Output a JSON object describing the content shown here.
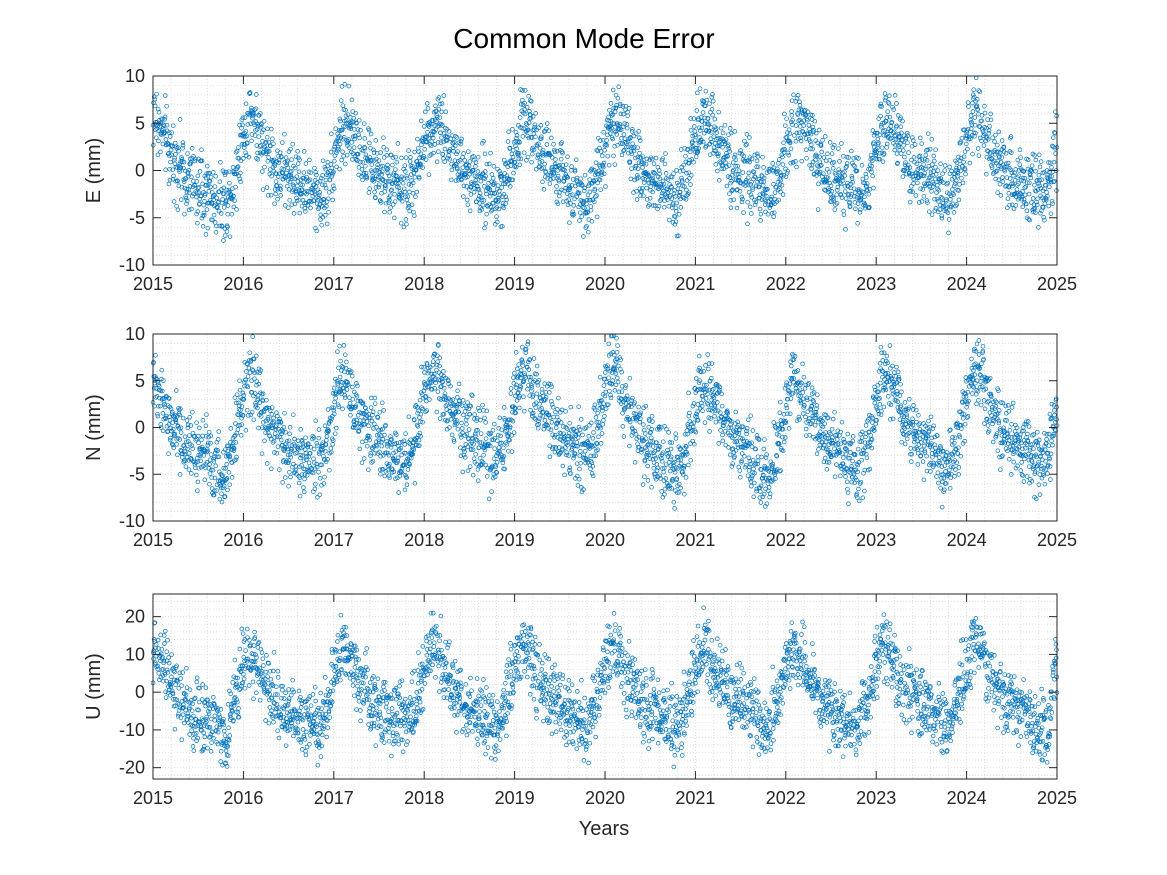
{
  "figure": {
    "title": "Common Mode Error",
    "xlabel": "Years",
    "marker_color": "#0072BD"
  },
  "chart_data": [
    {
      "type": "scatter",
      "ylabel": "E (mm)",
      "xlim": [
        2015,
        2025
      ],
      "ylim": [
        -10,
        10
      ],
      "xticks": [
        2015,
        2016,
        2017,
        2018,
        2019,
        2020,
        2021,
        2022,
        2023,
        2024,
        2025
      ],
      "xtick_labels": [
        "2015",
        "2016",
        "2017",
        "2018",
        "2019",
        "2020",
        "2021",
        "2022",
        "2023",
        "2024",
        "2025"
      ],
      "yticks": [
        -10,
        -5,
        0,
        5,
        10
      ],
      "ytick_labels": [
        "-10",
        "-5",
        "0",
        "5",
        "10"
      ],
      "grid": "minor dotted",
      "x": [
        2015.02,
        2015.1,
        2015.2,
        2015.3,
        2015.4,
        2015.5,
        2015.6,
        2015.7,
        2015.8,
        2015.9,
        2016.0,
        2016.08,
        2016.15,
        2016.25,
        2016.35,
        2016.45,
        2016.55,
        2016.65,
        2016.75,
        2016.85,
        2016.95,
        2017.05,
        2017.12,
        2017.2,
        2017.3,
        2017.4,
        2017.5,
        2017.6,
        2017.7,
        2017.8,
        2017.9,
        2018.02,
        2018.1,
        2018.2,
        2018.3,
        2018.4,
        2018.5,
        2018.6,
        2018.7,
        2018.8,
        2018.9,
        2019.02,
        2019.1,
        2019.2,
        2019.3,
        2019.4,
        2019.5,
        2019.6,
        2019.7,
        2019.8,
        2019.9,
        2020.02,
        2020.1,
        2020.2,
        2020.3,
        2020.4,
        2020.5,
        2020.6,
        2020.7,
        2020.8,
        2020.9,
        2021.02,
        2021.1,
        2021.2,
        2021.3,
        2021.4,
        2021.5,
        2021.6,
        2021.7,
        2021.8,
        2021.9,
        2022.02,
        2022.1,
        2022.2,
        2022.3,
        2022.4,
        2022.5,
        2022.6,
        2022.7,
        2022.8,
        2022.9,
        2023.02,
        2023.1,
        2023.2,
        2023.3,
        2023.4,
        2023.5,
        2023.6,
        2023.7,
        2023.8,
        2023.9,
        2024.02,
        2024.1,
        2024.2,
        2024.3,
        2024.4,
        2024.5,
        2024.6,
        2024.7,
        2024.8,
        2024.9,
        2024.98
      ],
      "y": [
        5.5,
        4.0,
        2.0,
        0.5,
        -1.0,
        -2.0,
        -2.5,
        -3.0,
        -3.5,
        -1.0,
        4.0,
        6.0,
        4.5,
        2.0,
        0.0,
        -0.5,
        -1.0,
        -1.5,
        -2.5,
        -3.0,
        -1.0,
        3.5,
        5.0,
        4.0,
        2.0,
        0.5,
        -0.5,
        -1.0,
        -1.5,
        -2.0,
        -1.0,
        3.5,
        5.0,
        4.5,
        2.5,
        0.5,
        -0.5,
        -1.5,
        -2.0,
        -2.5,
        -1.0,
        3.0,
        5.5,
        4.5,
        2.0,
        0.5,
        -0.5,
        -1.5,
        -2.5,
        -3.0,
        -1.0,
        3.5,
        5.5,
        4.0,
        1.5,
        0.0,
        -1.0,
        -1.5,
        -2.0,
        -2.5,
        -1.0,
        4.0,
        6.0,
        4.5,
        2.0,
        0.5,
        -0.5,
        -1.0,
        -1.5,
        -3.0,
        -2.0,
        3.0,
        5.0,
        4.5,
        2.0,
        0.0,
        -0.5,
        -1.0,
        -1.5,
        -2.0,
        -1.5,
        3.0,
        5.0,
        4.5,
        2.0,
        0.0,
        -0.5,
        -1.0,
        -2.0,
        -2.5,
        -1.0,
        4.5,
        6.0,
        4.5,
        2.0,
        0.5,
        -0.5,
        -1.0,
        -1.5,
        -2.0,
        -2.5,
        2.0
      ]
    },
    {
      "type": "scatter",
      "ylabel": "N (mm)",
      "xlim": [
        2015,
        2025
      ],
      "ylim": [
        -10,
        10
      ],
      "xticks": [
        2015,
        2016,
        2017,
        2018,
        2019,
        2020,
        2021,
        2022,
        2023,
        2024,
        2025
      ],
      "xtick_labels": [
        "2015",
        "2016",
        "2017",
        "2018",
        "2019",
        "2020",
        "2021",
        "2022",
        "2023",
        "2024",
        "2025"
      ],
      "yticks": [
        -10,
        -5,
        0,
        5,
        10
      ],
      "ytick_labels": [
        "-10",
        "-5",
        "0",
        "5",
        "10"
      ],
      "grid": "minor dotted",
      "x": [
        2015.02,
        2015.1,
        2015.2,
        2015.3,
        2015.4,
        2015.5,
        2015.6,
        2015.7,
        2015.8,
        2015.9,
        2016.0,
        2016.08,
        2016.15,
        2016.25,
        2016.35,
        2016.45,
        2016.55,
        2016.65,
        2016.75,
        2016.85,
        2016.95,
        2017.05,
        2017.12,
        2017.2,
        2017.3,
        2017.4,
        2017.5,
        2017.6,
        2017.7,
        2017.8,
        2017.9,
        2018.02,
        2018.1,
        2018.2,
        2018.3,
        2018.4,
        2018.5,
        2018.6,
        2018.7,
        2018.8,
        2018.9,
        2019.02,
        2019.1,
        2019.2,
        2019.3,
        2019.4,
        2019.5,
        2019.6,
        2019.7,
        2019.8,
        2019.9,
        2020.02,
        2020.1,
        2020.2,
        2020.3,
        2020.4,
        2020.5,
        2020.6,
        2020.7,
        2020.8,
        2020.9,
        2021.02,
        2021.1,
        2021.2,
        2021.3,
        2021.4,
        2021.5,
        2021.6,
        2021.7,
        2021.8,
        2021.9,
        2022.02,
        2022.1,
        2022.2,
        2022.3,
        2022.4,
        2022.5,
        2022.6,
        2022.7,
        2022.8,
        2022.9,
        2023.02,
        2023.1,
        2023.2,
        2023.3,
        2023.4,
        2023.5,
        2023.6,
        2023.7,
        2023.8,
        2023.9,
        2024.02,
        2024.1,
        2024.2,
        2024.3,
        2024.4,
        2024.5,
        2024.6,
        2024.7,
        2024.8,
        2024.9,
        2024.98
      ],
      "y": [
        5.0,
        3.0,
        0.5,
        -1.0,
        -2.0,
        -2.5,
        -3.0,
        -4.0,
        -5.0,
        -1.0,
        4.0,
        6.0,
        4.0,
        1.0,
        -1.0,
        -2.0,
        -2.5,
        -3.0,
        -4.0,
        -4.5,
        -1.0,
        4.5,
        5.5,
        3.0,
        1.0,
        -0.5,
        -1.5,
        -2.5,
        -3.5,
        -4.0,
        -1.0,
        4.0,
        6.0,
        4.0,
        2.0,
        0.5,
        -0.5,
        -1.5,
        -2.5,
        -3.5,
        -1.0,
        4.0,
        6.5,
        4.5,
        2.0,
        0.5,
        -0.5,
        -1.5,
        -2.5,
        -3.0,
        -1.0,
        4.5,
        6.5,
        4.0,
        1.5,
        -1.0,
        -2.0,
        -3.0,
        -4.0,
        -5.5,
        -2.0,
        3.0,
        5.0,
        3.0,
        1.0,
        -1.0,
        -2.0,
        -2.5,
        -4.0,
        -6.0,
        -3.0,
        3.0,
        5.0,
        3.0,
        1.0,
        -1.0,
        -2.0,
        -3.0,
        -4.0,
        -5.0,
        -2.0,
        3.5,
        5.5,
        4.0,
        1.5,
        -0.5,
        -1.5,
        -2.5,
        -3.5,
        -4.5,
        -1.5,
        4.0,
        6.0,
        4.0,
        1.5,
        0.0,
        -1.0,
        -2.0,
        -3.0,
        -4.0,
        -3.0,
        1.0
      ]
    },
    {
      "type": "scatter",
      "ylabel": "U (mm)",
      "xlim": [
        2015,
        2025
      ],
      "ylim": [
        -23,
        26
      ],
      "xticks": [
        2015,
        2016,
        2017,
        2018,
        2019,
        2020,
        2021,
        2022,
        2023,
        2024,
        2025
      ],
      "xtick_labels": [
        "2015",
        "2016",
        "2017",
        "2018",
        "2019",
        "2020",
        "2021",
        "2022",
        "2023",
        "2024",
        "2025"
      ],
      "yticks": [
        -20,
        -10,
        0,
        10,
        20
      ],
      "ytick_labels": [
        "-20",
        "-10",
        "0",
        "10",
        "20"
      ],
      "grid": "minor dotted",
      "x": [
        2015.02,
        2015.1,
        2015.2,
        2015.3,
        2015.4,
        2015.5,
        2015.6,
        2015.7,
        2015.8,
        2015.9,
        2016.0,
        2016.08,
        2016.15,
        2016.25,
        2016.35,
        2016.45,
        2016.55,
        2016.65,
        2016.75,
        2016.85,
        2016.95,
        2017.05,
        2017.12,
        2017.2,
        2017.3,
        2017.4,
        2017.5,
        2017.6,
        2017.7,
        2017.8,
        2017.9,
        2018.02,
        2018.1,
        2018.2,
        2018.3,
        2018.4,
        2018.5,
        2018.6,
        2018.7,
        2018.8,
        2018.9,
        2019.02,
        2019.1,
        2019.2,
        2019.3,
        2019.4,
        2019.5,
        2019.6,
        2019.7,
        2019.8,
        2019.9,
        2020.02,
        2020.1,
        2020.2,
        2020.3,
        2020.4,
        2020.5,
        2020.6,
        2020.7,
        2020.8,
        2020.9,
        2021.02,
        2021.1,
        2021.2,
        2021.3,
        2021.4,
        2021.5,
        2021.6,
        2021.7,
        2021.8,
        2021.9,
        2022.02,
        2022.1,
        2022.2,
        2022.3,
        2022.4,
        2022.5,
        2022.6,
        2022.7,
        2022.8,
        2022.9,
        2023.02,
        2023.1,
        2023.2,
        2023.3,
        2023.4,
        2023.5,
        2023.6,
        2023.7,
        2023.8,
        2023.9,
        2024.02,
        2024.1,
        2024.2,
        2024.3,
        2024.4,
        2024.5,
        2024.6,
        2024.7,
        2024.8,
        2024.9,
        2024.98
      ],
      "y": [
        12.0,
        8.0,
        3.0,
        -2.0,
        -5.0,
        -6.0,
        -7.0,
        -9.0,
        -12.0,
        -3.0,
        8.0,
        12.0,
        8.0,
        3.0,
        -2.0,
        -4.0,
        -6.0,
        -7.0,
        -8.0,
        -9.0,
        -2.0,
        9.0,
        12.0,
        7.0,
        2.0,
        -2.0,
        -4.0,
        -5.0,
        -7.0,
        -8.0,
        -3.0,
        8.0,
        13.0,
        8.0,
        2.0,
        -2.0,
        -4.0,
        -6.0,
        -8.0,
        -10.0,
        -3.0,
        8.0,
        13.0,
        7.0,
        2.0,
        -2.0,
        -4.0,
        -6.0,
        -8.0,
        -10.0,
        -2.0,
        9.0,
        12.0,
        7.0,
        2.0,
        -2.0,
        -4.0,
        -6.0,
        -8.0,
        -11.0,
        -3.0,
        8.0,
        12.0,
        7.0,
        2.0,
        -1.0,
        -3.0,
        -5.0,
        -7.0,
        -9.0,
        -3.0,
        8.0,
        12.0,
        7.0,
        2.0,
        -2.0,
        -4.0,
        -6.0,
        -8.0,
        -10.0,
        -3.0,
        9.0,
        13.0,
        7.0,
        2.0,
        -1.0,
        -3.0,
        -5.0,
        -7.0,
        -9.0,
        -2.0,
        9.0,
        14.0,
        8.0,
        3.0,
        -1.0,
        -3.0,
        -5.0,
        -7.0,
        -9.0,
        -11.0,
        8.0
      ]
    }
  ]
}
